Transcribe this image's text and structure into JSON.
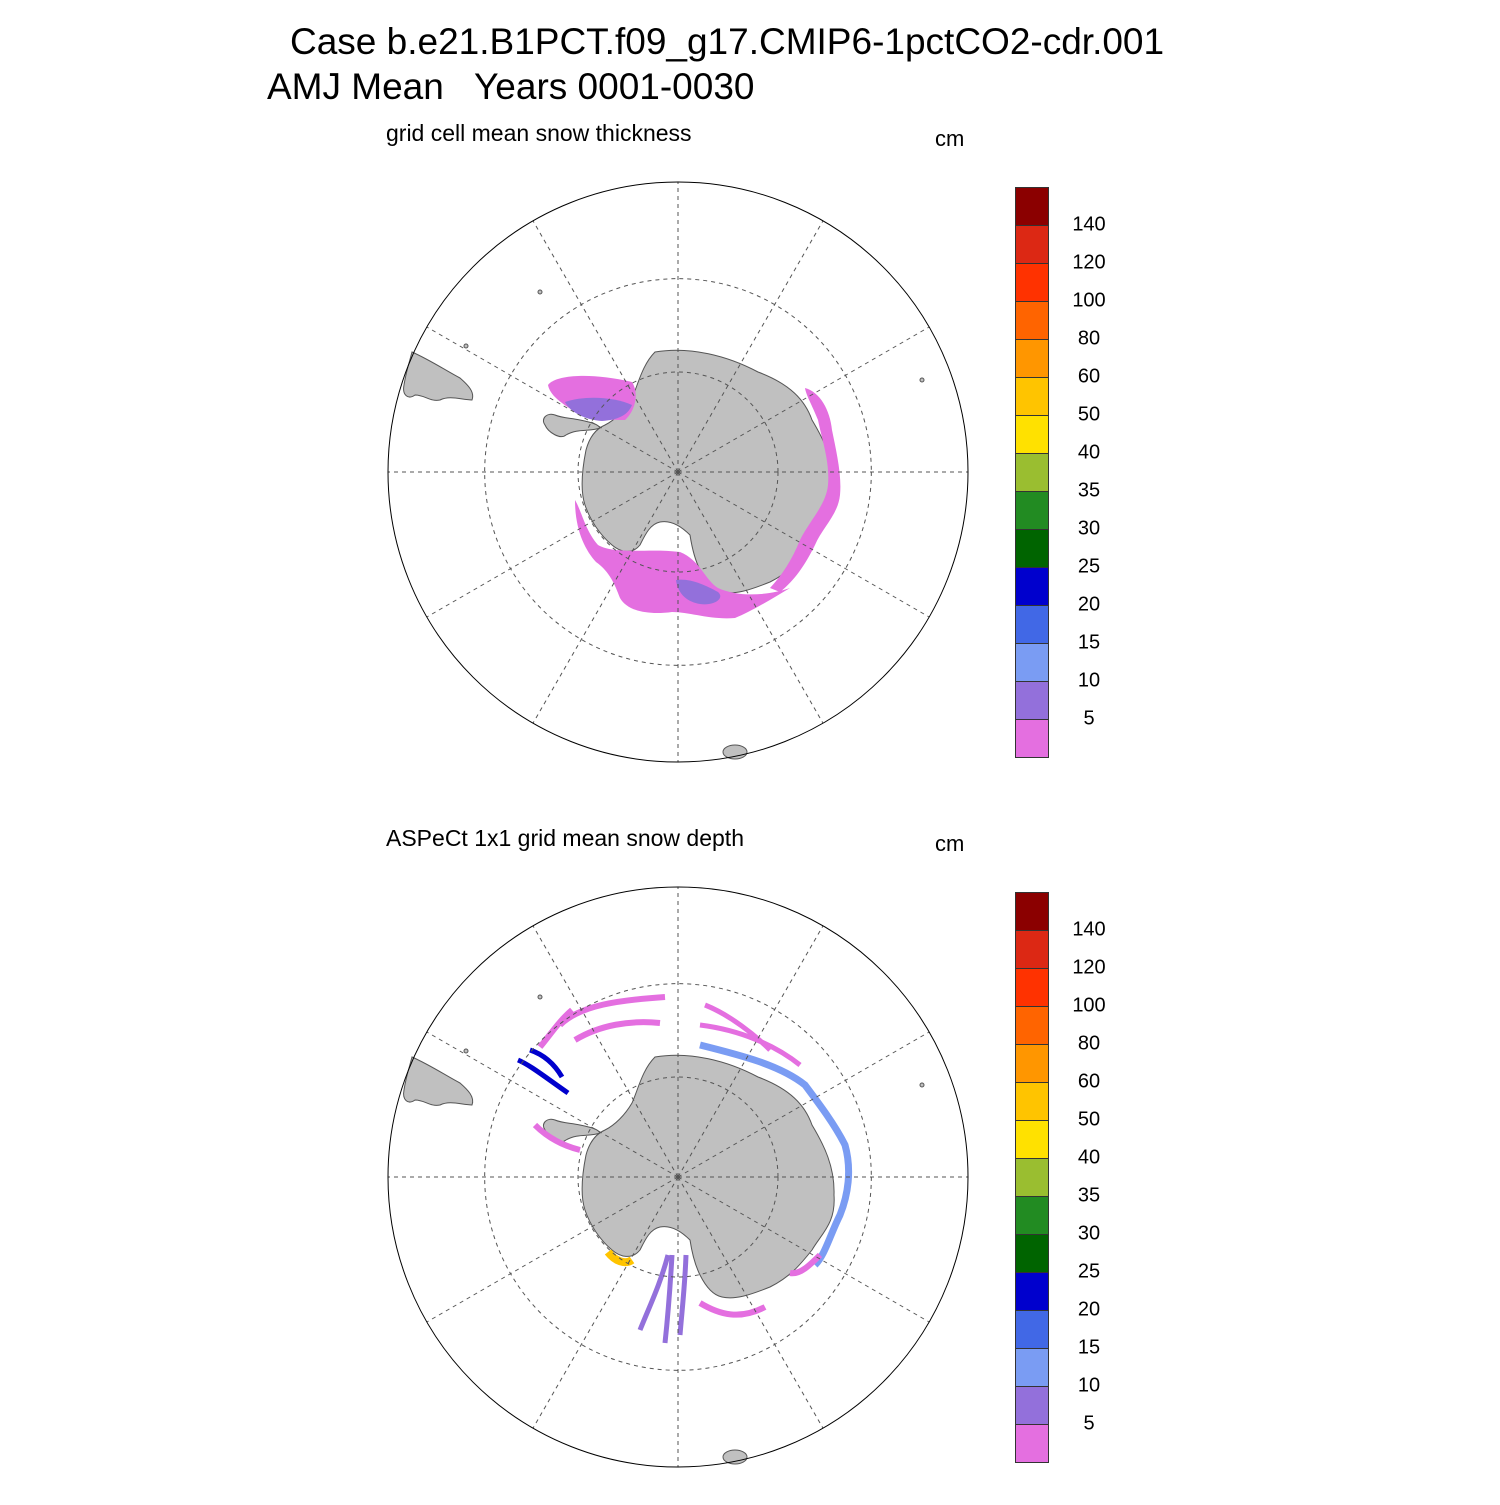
{
  "figure": {
    "title_line1": "Case b.e21.B1PCT.f09_g17.CMIP6-1pctCO2-cdr.001",
    "title_line2": "AMJ Mean   Years 0001-0030"
  },
  "colors": {
    "land": "#c0c0c0",
    "coast": "#555555",
    "grid": "#555555",
    "levels": [
      "#e46fe0",
      "#9370db",
      "#7a9cf3",
      "#4168e6",
      "#0000cd",
      "#006400",
      "#228b22",
      "#9abe30",
      "#ffe100",
      "#ffc400",
      "#ff9600",
      "#ff6400",
      "#ff3200",
      "#dc2814",
      "#8b0000"
    ]
  },
  "colorbar": {
    "labels": [
      "5",
      "10",
      "15",
      "20",
      "25",
      "30",
      "35",
      "40",
      "50",
      "60",
      "80",
      "100",
      "120",
      "140"
    ]
  },
  "panels": [
    {
      "title": "grid cell mean snow thickness",
      "units": "cm",
      "sea_ice": [
        {
          "region": "weddell-sea",
          "level_index": 0
        },
        {
          "region": "weddell-sea-inner",
          "level_index": 1
        },
        {
          "region": "east-antarctic-coast",
          "level_index": 0
        },
        {
          "region": "ross-amundsen-sea",
          "level_index": 0
        },
        {
          "region": "ross-sea-inner",
          "level_index": 1
        }
      ]
    },
    {
      "title": "ASPeCt 1x1 grid mean snow depth",
      "units": "cm",
      "sea_ice": [
        {
          "region": "ship-tracks-weddell",
          "level_index": 0
        },
        {
          "region": "ship-tracks-east-antarctica",
          "level_index": 2
        },
        {
          "region": "ship-tracks-ross-sea",
          "level_index": 1
        },
        {
          "region": "peninsula-obs",
          "level_index": 4
        },
        {
          "region": "bellingshausen-obs",
          "level_index": 9
        }
      ]
    }
  ]
}
